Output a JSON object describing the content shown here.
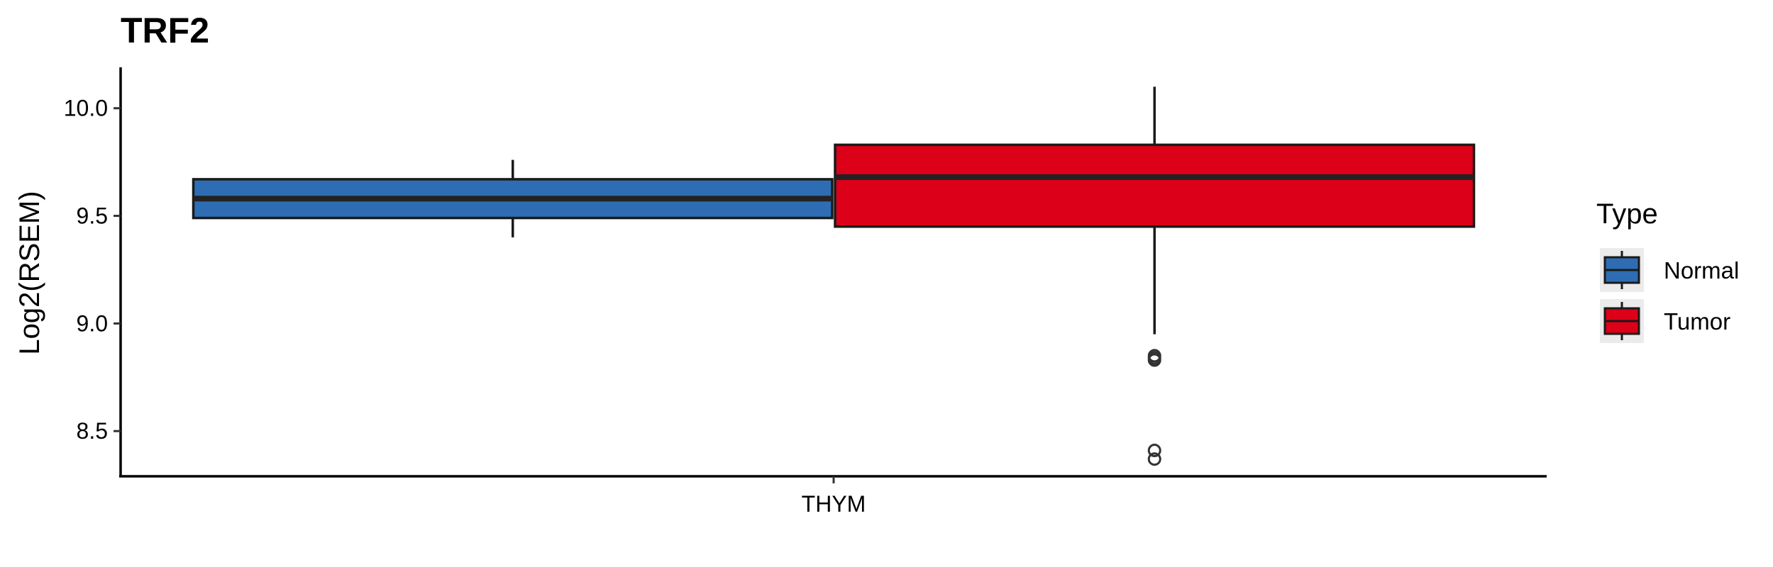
{
  "chart_data": {
    "type": "box",
    "title": "TRF2",
    "xlabel": "",
    "ylabel": "Log2(RSEM)",
    "categories": [
      "THYM"
    ],
    "ylim": [
      8.29,
      10.19
    ],
    "yticks": [
      8.5,
      9.0,
      9.5,
      10.0
    ],
    "ytick_labels": [
      "8.5",
      "9.0",
      "9.5",
      "10.0"
    ],
    "grid": false,
    "legend": {
      "title": "Type",
      "placement": "right",
      "entries": [
        "Normal",
        "Tumor"
      ]
    },
    "series": [
      {
        "name": "Normal",
        "color": "#2E6DB4",
        "category": "THYM",
        "whisker_low": 9.4,
        "q1": 9.49,
        "median": 9.58,
        "q3": 9.67,
        "whisker_high": 9.76,
        "outliers": []
      },
      {
        "name": "Tumor",
        "color": "#DC0018",
        "category": "THYM",
        "whisker_low": 8.95,
        "q1": 9.45,
        "median": 9.68,
        "q3": 9.83,
        "whisker_high": 10.1,
        "outliers": [
          8.83,
          8.84,
          8.85,
          8.37,
          8.41
        ]
      }
    ]
  }
}
